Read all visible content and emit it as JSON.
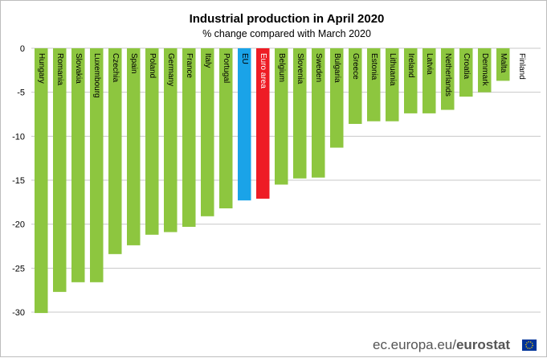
{
  "chart_data": {
    "type": "bar",
    "title": "Industrial production in April 2020",
    "subtitle": "% change compared with March 2020",
    "xlabel": "",
    "ylabel": "",
    "ylim": [
      -30,
      0
    ],
    "yticks": [
      0,
      -5,
      -10,
      -15,
      -20,
      -25,
      -30
    ],
    "grid": true,
    "categories": [
      "Hungary",
      "Romania",
      "Slovakia",
      "Luxembourg",
      "Czechia",
      "Spain",
      "Poland",
      "Germany",
      "France",
      "Italy",
      "Portugal",
      "EU",
      "Euro area",
      "Belgium",
      "Slovenia",
      "Sweden",
      "Bulgaria",
      "Greece",
      "Estonia",
      "Lithuania",
      "Ireland",
      "Latvia",
      "Netherlands",
      "Croatia",
      "Denmark",
      "Malta",
      "Finland"
    ],
    "values": [
      -30.1,
      -27.7,
      -26.6,
      -26.6,
      -23.4,
      -22.4,
      -21.2,
      -20.9,
      -20.3,
      -19.1,
      -18.2,
      -17.3,
      -17.1,
      -15.5,
      -14.8,
      -14.7,
      -11.3,
      -8.6,
      -8.3,
      -8.3,
      -7.4,
      -7.4,
      -7.0,
      -5.5,
      -5.0,
      -3.7,
      0.0
    ],
    "colors": {
      "default": "#8dc63f",
      "EU": "#1aa3e8",
      "Euro area": "#ee1c25"
    }
  },
  "footer": {
    "source": "ec.europa.eu/",
    "brand": "eurostat"
  }
}
